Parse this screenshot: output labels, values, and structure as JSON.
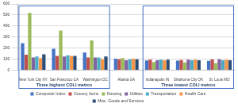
{
  "chart_data": {
    "type": "bar",
    "categories": [
      "New York City NY",
      "San Francisco CA",
      "Washington DC",
      "Atlanta GA",
      "Indianapolis IN",
      "Oklahoma City OK",
      "St. Louis MO"
    ],
    "series": [
      {
        "name": "Composite Index",
        "color": "#4472c4",
        "values": [
          245,
          195,
          160,
          105,
          88,
          86,
          85
        ]
      },
      {
        "name": "Grocery Items",
        "color": "#c0504d",
        "values": [
          140,
          130,
          115,
          100,
          95,
          93,
          98
        ]
      },
      {
        "name": "Housing",
        "color": "#9bbb59",
        "values": [
          520,
          360,
          270,
          110,
          75,
          70,
          65
        ]
      },
      {
        "name": "Utilities",
        "color": "#8064a2",
        "values": [
          115,
          125,
          115,
          90,
          90,
          95,
          100
        ]
      },
      {
        "name": "Transportation",
        "color": "#4bacc6",
        "values": [
          125,
          135,
          115,
          100,
          95,
          90,
          90
        ]
      },
      {
        "name": "Health Care",
        "color": "#f79646",
        "values": [
          110,
          130,
          100,
          105,
          90,
          95,
          95
        ]
      },
      {
        "name": "Misc. Goods and Services",
        "color": "#2c4d75",
        "values": [
          145,
          130,
          125,
          100,
          95,
          90,
          90
        ]
      }
    ],
    "ylim": [
      0,
      600
    ],
    "yticks": [
      0,
      100,
      200,
      300,
      400,
      500,
      600
    ],
    "grid": true,
    "legend": "bottom",
    "annotations": [
      {
        "text": "Three highest COLI metros",
        "from": "New York City NY",
        "to": "Washington DC"
      },
      {
        "text": "Three lowest COLI metros",
        "from": "Indianapolis IN",
        "to": "St. Louis MO"
      }
    ]
  }
}
